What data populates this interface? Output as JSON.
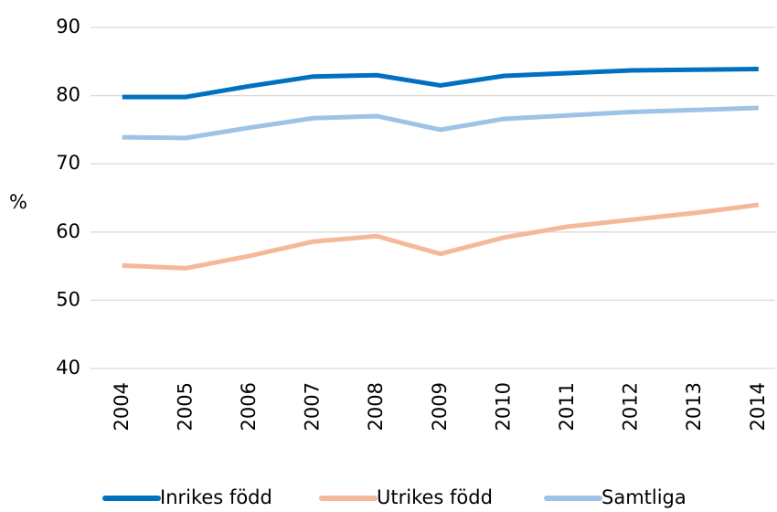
{
  "chart_data": {
    "type": "line",
    "ylabel": "%",
    "categories": [
      "2004",
      "2005",
      "2006",
      "2007",
      "2008",
      "2009",
      "2010",
      "2011",
      "2012",
      "2013",
      "2014"
    ],
    "series": [
      {
        "name": "Inrikes född",
        "color": "#0070c0",
        "values": [
          79.8,
          79.8,
          81.4,
          82.8,
          83.0,
          81.5,
          82.9,
          83.3,
          83.7,
          83.8,
          83.9
        ]
      },
      {
        "name": "Utrikes född",
        "color": "#f4b99a",
        "values": [
          55.1,
          54.7,
          56.5,
          58.6,
          59.4,
          56.8,
          59.2,
          60.8,
          61.8,
          62.8,
          64.0
        ]
      },
      {
        "name": "Samtliga",
        "color": "#9dc3e6",
        "values": [
          73.9,
          73.8,
          75.3,
          76.7,
          77.0,
          75.0,
          76.6,
          77.1,
          77.6,
          77.9,
          78.2
        ]
      }
    ],
    "ylim": [
      40,
      90
    ],
    "yticks": [
      40,
      50,
      60,
      70,
      80,
      90
    ],
    "grid": true,
    "legend": "bottom"
  }
}
